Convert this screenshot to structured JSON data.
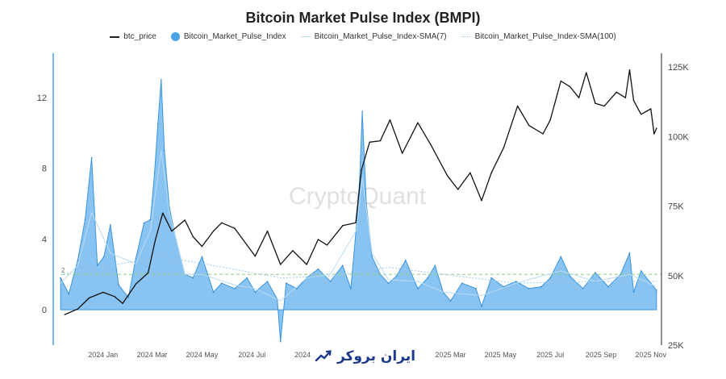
{
  "chart_data": {
    "type": "line",
    "title": "Bitcoin Market Pulse Index (BMPI)",
    "legend": [
      "btc_price",
      "Bitcoin_Market_Pulse_Index",
      "Bitcoin_Market_Pulse_Index-SMA(7)",
      "Bitcoin_Market_Pulse_Index-SMA(100)"
    ],
    "legend_position": "top-center",
    "x_tick_labels": [
      "2024 Jan",
      "2024 Mar",
      "2024 May",
      "2024 Jul",
      "2024",
      "2025 Mar",
      "2025 May",
      "2025 Jul",
      "2025 Sep",
      "2025 Nov"
    ],
    "y_left": {
      "ticks": [
        0,
        4,
        8,
        12
      ],
      "range": [
        -2,
        14.5
      ]
    },
    "y_right": {
      "ticks": [
        "25K",
        "50K",
        "75K",
        "100K",
        "125K"
      ],
      "range": [
        25000,
        130000
      ]
    },
    "reference_line": {
      "value": 2,
      "label": "2",
      "color": "#8fce7a"
    },
    "series": [
      {
        "name": "btc_price",
        "axis": "right",
        "color": "#111111",
        "x": [
          "2023-11-15",
          "2023-12-01",
          "2023-12-15",
          "2024-01-01",
          "2024-01-15",
          "2024-01-25",
          "2024-02-10",
          "2024-02-25",
          "2024-03-05",
          "2024-03-14",
          "2024-03-25",
          "2024-04-10",
          "2024-04-20",
          "2024-05-01",
          "2024-05-15",
          "2024-05-25",
          "2024-06-10",
          "2024-06-25",
          "2024-07-05",
          "2024-07-20",
          "2024-08-05",
          "2024-08-20",
          "2024-09-06",
          "2024-09-20",
          "2024-10-01",
          "2024-10-20",
          "2024-11-05",
          "2024-11-12",
          "2024-11-22",
          "2024-12-05",
          "2024-12-17",
          "2025-01-01",
          "2025-01-20",
          "2025-02-05",
          "2025-02-25",
          "2025-03-10",
          "2025-03-25",
          "2025-04-08",
          "2025-04-20",
          "2025-05-05",
          "2025-05-22",
          "2025-06-05",
          "2025-06-22",
          "2025-07-01",
          "2025-07-14",
          "2025-07-25",
          "2025-08-05",
          "2025-08-14",
          "2025-08-25",
          "2025-09-05",
          "2025-09-20",
          "2025-10-01",
          "2025-10-06",
          "2025-10-11",
          "2025-10-20",
          "2025-11-01",
          "2025-11-05",
          "2025-11-08"
        ],
        "y": [
          36000,
          38000,
          42000,
          44000,
          42500,
          40000,
          47000,
          51000,
          63000,
          72500,
          66000,
          70000,
          64000,
          60500,
          66000,
          69000,
          67000,
          61000,
          57000,
          66000,
          54000,
          59000,
          54000,
          63000,
          61000,
          68000,
          69000,
          88000,
          98000,
          98500,
          106000,
          94000,
          105000,
          97000,
          86000,
          81000,
          87000,
          77000,
          87000,
          96000,
          111000,
          104000,
          101000,
          106000,
          120000,
          118000,
          114000,
          123000,
          112000,
          111000,
          116000,
          114000,
          124000,
          113000,
          108000,
          110000,
          101000,
          103000
        ]
      },
      {
        "name": "Bitcoin_Market_Pulse_Index",
        "axis": "left",
        "color": "#4aa3e6",
        "x": [
          "2023-11-10",
          "2023-11-20",
          "2023-12-01",
          "2023-12-10",
          "2023-12-18",
          "2023-12-25",
          "2024-01-02",
          "2024-01-10",
          "2024-01-20",
          "2024-02-01",
          "2024-02-10",
          "2024-02-20",
          "2024-02-28",
          "2024-03-04",
          "2024-03-08",
          "2024-03-12",
          "2024-03-16",
          "2024-03-22",
          "2024-03-30",
          "2024-04-10",
          "2024-04-20",
          "2024-05-01",
          "2024-05-15",
          "2024-05-25",
          "2024-06-10",
          "2024-06-25",
          "2024-07-05",
          "2024-07-20",
          "2024-08-01",
          "2024-08-05",
          "2024-08-12",
          "2024-08-25",
          "2024-09-06",
          "2024-09-20",
          "2024-10-05",
          "2024-10-20",
          "2024-10-30",
          "2024-11-06",
          "2024-11-10",
          "2024-11-13",
          "2024-11-18",
          "2024-11-25",
          "2024-12-05",
          "2024-12-15",
          "2024-12-25",
          "2025-01-05",
          "2025-01-20",
          "2025-02-01",
          "2025-02-10",
          "2025-02-20",
          "2025-03-01",
          "2025-03-15",
          "2025-04-01",
          "2025-04-08",
          "2025-04-20",
          "2025-05-05",
          "2025-05-20",
          "2025-06-05",
          "2025-06-20",
          "2025-07-01",
          "2025-07-14",
          "2025-07-25",
          "2025-08-10",
          "2025-08-25",
          "2025-09-10",
          "2025-09-25",
          "2025-10-06",
          "2025-10-11",
          "2025-10-20",
          "2025-11-01",
          "2025-11-08"
        ],
        "y": [
          1.8,
          0.9,
          2.8,
          5.1,
          8.6,
          2.5,
          3.0,
          4.8,
          1.4,
          0.7,
          2.9,
          4.9,
          5.1,
          7.8,
          10.5,
          13.0,
          9.0,
          5.8,
          4.0,
          2.0,
          1.8,
          3.0,
          1.0,
          1.5,
          1.2,
          1.8,
          1.0,
          1.6,
          0.6,
          -1.8,
          1.5,
          1.2,
          1.8,
          2.3,
          1.6,
          2.5,
          1.2,
          4.8,
          7.5,
          11.2,
          6.0,
          3.0,
          2.0,
          1.5,
          1.9,
          2.8,
          1.2,
          1.8,
          2.5,
          1.0,
          0.5,
          1.5,
          1.2,
          0.2,
          1.8,
          1.3,
          1.6,
          1.2,
          1.3,
          1.8,
          3.0,
          1.9,
          1.2,
          2.1,
          1.3,
          2.0,
          3.2,
          1.0,
          2.2,
          1.5,
          1.1
        ]
      },
      {
        "name": "Bitcoin_Market_Pulse_Index-SMA(7)",
        "axis": "left",
        "color": "#b9dcf3",
        "x": [
          "2023-11-10",
          "2023-12-01",
          "2023-12-18",
          "2024-01-10",
          "2024-02-10",
          "2024-02-28",
          "2024-03-12",
          "2024-03-22",
          "2024-04-10",
          "2024-05-01",
          "2024-06-10",
          "2024-07-05",
          "2024-08-05",
          "2024-09-06",
          "2024-10-05",
          "2024-11-06",
          "2024-11-13",
          "2024-11-25",
          "2024-12-15",
          "2025-01-20",
          "2025-02-20",
          "2025-04-08",
          "2025-05-20",
          "2025-07-14",
          "2025-08-25",
          "2025-10-06",
          "2025-11-08"
        ],
        "y": [
          1.5,
          2.5,
          5.5,
          3.2,
          2.6,
          4.5,
          9.0,
          5.5,
          2.0,
          2.0,
          1.4,
          1.2,
          0.5,
          1.8,
          2.0,
          4.5,
          7.5,
          3.2,
          1.7,
          1.6,
          1.0,
          0.8,
          1.5,
          2.2,
          1.6,
          2.0,
          1.3
        ]
      },
      {
        "name": "Bitcoin_Market_Pulse_Index-SMA(100)",
        "axis": "left",
        "color": "#9fc9e8",
        "x": [
          "2023-11-10",
          "2024-01-10",
          "2024-03-12",
          "2024-05-15",
          "2024-08-05",
          "2024-10-05",
          "2024-12-15",
          "2025-02-20",
          "2025-05-20",
          "2025-08-25",
          "2025-11-08"
        ],
        "y": [
          2.0,
          2.5,
          3.0,
          2.5,
          1.8,
          1.9,
          2.4,
          2.0,
          1.5,
          1.6,
          1.6
        ]
      }
    ]
  },
  "watermark": "CryptoQuant",
  "brand": {
    "text": "ایران بروکر"
  }
}
